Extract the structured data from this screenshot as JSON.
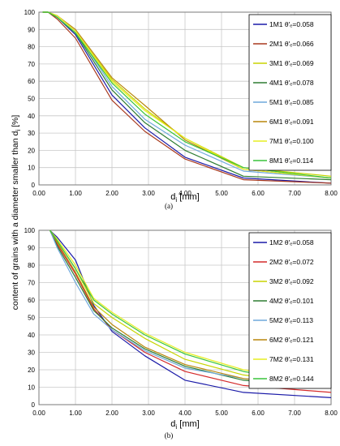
{
  "figure": {
    "y_axis_title": "content of grains with a diameter smaller than d",
    "y_axis_title_sub": "i",
    "y_axis_title_unit": " [%]"
  },
  "chart_data": [
    {
      "type": "line",
      "panel_label": "(a)",
      "xlabel": "d",
      "xlabel_sub": "i",
      "xlabel_unit": " [mm]",
      "xlim": [
        0,
        8
      ],
      "ylim": [
        0,
        100
      ],
      "x_ticks": [
        "0.00",
        "1.00",
        "2.00",
        "3.00",
        "4.00",
        "5.00",
        "6.00",
        "7.00",
        "8.00"
      ],
      "y_ticks": [
        "0",
        "10",
        "20",
        "30",
        "40",
        "50",
        "60",
        "70",
        "80",
        "90",
        "100"
      ],
      "grid": true,
      "legend_position": "top-right",
      "x": [
        0.1,
        0.25,
        0.5,
        1.0,
        2.0,
        2.9,
        4.0,
        5.6,
        8.0
      ],
      "series": [
        {
          "name": "1M1 θ'ₑ=0.058",
          "color": "#1a1aa8",
          "values": [
            100,
            100,
            97,
            87,
            52,
            33,
            16,
            4,
            1
          ]
        },
        {
          "name": "2M1 θ'ₑ=0.066",
          "color": "#a8391e",
          "values": [
            100,
            100,
            96,
            85,
            49,
            31,
            15,
            3,
            1
          ]
        },
        {
          "name": "3M1 θ'ₑ=0.069",
          "color": "#c8d400",
          "values": [
            100,
            100,
            98,
            89,
            61,
            44,
            27,
            10,
            5
          ]
        },
        {
          "name": "4M1 θ'ₑ=0.078",
          "color": "#2e7d32",
          "values": [
            100,
            100,
            97,
            88,
            55,
            36,
            20,
            5,
            3
          ]
        },
        {
          "name": "5M1 θ'ₑ=0.085",
          "color": "#6fa8dc",
          "values": [
            100,
            100,
            98,
            89,
            57,
            38,
            23,
            8,
            4
          ]
        },
        {
          "name": "6M1 θ'ₑ=0.091",
          "color": "#b8860b",
          "values": [
            100,
            100,
            98,
            90,
            62,
            46,
            26,
            9,
            4
          ]
        },
        {
          "name": "7M1 θ'ₑ=0.100",
          "color": "#e6ee22",
          "values": [
            100,
            100,
            98,
            89,
            60,
            43,
            27,
            9,
            4
          ]
        },
        {
          "name": "8M1 θ'ₑ=0.114",
          "color": "#39c43b",
          "values": [
            100,
            100,
            97,
            88,
            59,
            41,
            25,
            10,
            4
          ]
        }
      ]
    },
    {
      "type": "line",
      "panel_label": "(b)",
      "xlabel": "d",
      "xlabel_sub": "i",
      "xlabel_unit": " [mm]",
      "xlim": [
        0,
        8
      ],
      "ylim": [
        0,
        100
      ],
      "x_ticks": [
        "0.00",
        "1.00",
        "2.00",
        "3.00",
        "4.00",
        "5.00",
        "6.00",
        "7.00",
        "8.00"
      ],
      "y_ticks": [
        "0",
        "10",
        "20",
        "30",
        "40",
        "50",
        "60",
        "70",
        "80",
        "90",
        "100"
      ],
      "grid": true,
      "legend_position": "top-right",
      "x": [
        0.3,
        0.5,
        1.0,
        1.5,
        2.0,
        2.9,
        4.0,
        5.6,
        8.0
      ],
      "series": [
        {
          "name": "1M2 θ'ₑ=0.058",
          "color": "#1a1aa8",
          "values": [
            100,
            96,
            83,
            57,
            42,
            28,
            14,
            7,
            4
          ]
        },
        {
          "name": "2M2 θ'ₑ=0.072",
          "color": "#d42a2a",
          "values": [
            100,
            92,
            75,
            55,
            43,
            30,
            19,
            11,
            7
          ]
        },
        {
          "name": "3M2 θ'ₑ=0.092",
          "color": "#c8d400",
          "values": [
            100,
            94,
            78,
            58,
            50,
            38,
            26,
            17,
            11
          ]
        },
        {
          "name": "4M2 θ'ₑ=0.101",
          "color": "#2e7d32",
          "values": [
            100,
            91,
            73,
            54,
            44,
            32,
            22,
            14,
            10
          ]
        },
        {
          "name": "5M2 θ'ₑ=0.113",
          "color": "#6fa8dc",
          "values": [
            100,
            90,
            70,
            52,
            43,
            31,
            21,
            15,
            10
          ]
        },
        {
          "name": "6M2 θ'ₑ=0.121",
          "color": "#b8860b",
          "values": [
            100,
            93,
            76,
            56,
            46,
            33,
            23,
            15,
            10
          ]
        },
        {
          "name": "7M2 θ'ₑ=0.131",
          "color": "#e6ee22",
          "values": [
            100,
            95,
            80,
            61,
            53,
            41,
            30,
            20,
            13
          ]
        },
        {
          "name": "8M2 θ'ₑ=0.144",
          "color": "#39c43b",
          "values": [
            100,
            94,
            78,
            60,
            52,
            40,
            29,
            19,
            11
          ]
        }
      ]
    }
  ]
}
